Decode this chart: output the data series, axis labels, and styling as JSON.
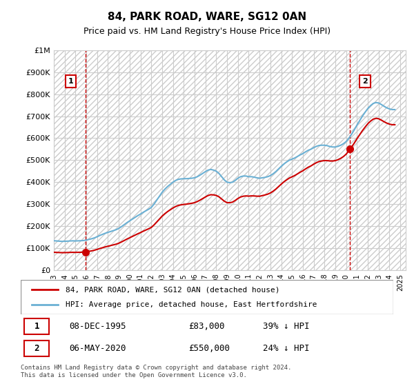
{
  "title": "84, PARK ROAD, WARE, SG12 0AN",
  "subtitle": "Price paid vs. HM Land Registry's House Price Index (HPI)",
  "xlabel": "",
  "ylabel": "",
  "ylim": [
    0,
    1000000
  ],
  "yticks": [
    0,
    100000,
    200000,
    300000,
    400000,
    500000,
    600000,
    700000,
    800000,
    900000,
    1000000
  ],
  "ytick_labels": [
    "£0",
    "£100K",
    "£200K",
    "£300K",
    "£400K",
    "£500K",
    "£600K",
    "£700K",
    "£800K",
    "£900K",
    "£1M"
  ],
  "xlim_start": 1993.0,
  "xlim_end": 2025.5,
  "xticks": [
    1993,
    1994,
    1995,
    1996,
    1997,
    1998,
    1999,
    2000,
    2001,
    2002,
    2003,
    2004,
    2005,
    2006,
    2007,
    2008,
    2009,
    2010,
    2011,
    2012,
    2013,
    2014,
    2015,
    2016,
    2017,
    2018,
    2019,
    2020,
    2021,
    2022,
    2023,
    2024,
    2025
  ],
  "hpi_color": "#6ab0d4",
  "price_color": "#cc0000",
  "vline_color": "#cc0000",
  "vline_style": "--",
  "annotation_box_color": "#cc0000",
  "background_color": "#ffffff",
  "grid_color": "#cccccc",
  "transaction1_date": 1995.93,
  "transaction1_price": 83000,
  "transaction1_label": "1",
  "transaction2_date": 2020.35,
  "transaction2_price": 550000,
  "transaction2_label": "2",
  "legend_label_price": "84, PARK ROAD, WARE, SG12 0AN (detached house)",
  "legend_label_hpi": "HPI: Average price, detached house, East Hertfordshire",
  "table_row1": [
    "1",
    "08-DEC-1995",
    "£83,000",
    "39% ↓ HPI"
  ],
  "table_row2": [
    "2",
    "06-MAY-2020",
    "£550,000",
    "24% ↓ HPI"
  ],
  "footnote": "Contains HM Land Registry data © Crown copyright and database right 2024.\nThis data is licensed under the Open Government Licence v3.0.",
  "hpi_data_x": [
    1993.0,
    1993.25,
    1993.5,
    1993.75,
    1994.0,
    1994.25,
    1994.5,
    1994.75,
    1995.0,
    1995.25,
    1995.5,
    1995.75,
    1996.0,
    1996.25,
    1996.5,
    1996.75,
    1997.0,
    1997.25,
    1997.5,
    1997.75,
    1998.0,
    1998.25,
    1998.5,
    1998.75,
    1999.0,
    1999.25,
    1999.5,
    1999.75,
    2000.0,
    2000.25,
    2000.5,
    2000.75,
    2001.0,
    2001.25,
    2001.5,
    2001.75,
    2002.0,
    2002.25,
    2002.5,
    2002.75,
    2003.0,
    2003.25,
    2003.5,
    2003.75,
    2004.0,
    2004.25,
    2004.5,
    2004.75,
    2005.0,
    2005.25,
    2005.5,
    2005.75,
    2006.0,
    2006.25,
    2006.5,
    2006.75,
    2007.0,
    2007.25,
    2007.5,
    2007.75,
    2008.0,
    2008.25,
    2008.5,
    2008.75,
    2009.0,
    2009.25,
    2009.5,
    2009.75,
    2010.0,
    2010.25,
    2010.5,
    2010.75,
    2011.0,
    2011.25,
    2011.5,
    2011.75,
    2012.0,
    2012.25,
    2012.5,
    2012.75,
    2013.0,
    2013.25,
    2013.5,
    2013.75,
    2014.0,
    2014.25,
    2014.5,
    2014.75,
    2015.0,
    2015.25,
    2015.5,
    2015.75,
    2016.0,
    2016.25,
    2016.5,
    2016.75,
    2017.0,
    2017.25,
    2017.5,
    2017.75,
    2018.0,
    2018.25,
    2018.5,
    2018.75,
    2019.0,
    2019.25,
    2019.5,
    2019.75,
    2020.0,
    2020.25,
    2020.5,
    2020.75,
    2021.0,
    2021.25,
    2021.5,
    2021.75,
    2022.0,
    2022.25,
    2022.5,
    2022.75,
    2023.0,
    2023.25,
    2023.5,
    2023.75,
    2024.0,
    2024.25,
    2024.5
  ],
  "hpi_data_y": [
    134000,
    133000,
    132000,
    131000,
    131500,
    132000,
    133000,
    133500,
    133000,
    133500,
    134000,
    135000,
    137000,
    140000,
    143000,
    147000,
    152000,
    158000,
    163000,
    168000,
    172000,
    176000,
    180000,
    184000,
    190000,
    198000,
    207000,
    216000,
    224000,
    232000,
    240000,
    248000,
    255000,
    263000,
    270000,
    277000,
    285000,
    300000,
    318000,
    336000,
    354000,
    368000,
    380000,
    390000,
    400000,
    408000,
    413000,
    415000,
    416000,
    416000,
    417000,
    418000,
    420000,
    425000,
    432000,
    440000,
    448000,
    455000,
    458000,
    455000,
    450000,
    440000,
    425000,
    410000,
    400000,
    398000,
    400000,
    408000,
    418000,
    425000,
    428000,
    428000,
    425000,
    425000,
    423000,
    420000,
    418000,
    420000,
    422000,
    425000,
    430000,
    438000,
    448000,
    460000,
    472000,
    483000,
    492000,
    500000,
    505000,
    510000,
    517000,
    524000,
    530000,
    538000,
    545000,
    550000,
    557000,
    563000,
    567000,
    568000,
    568000,
    566000,
    562000,
    560000,
    560000,
    563000,
    568000,
    575000,
    585000,
    600000,
    618000,
    638000,
    660000,
    680000,
    700000,
    718000,
    735000,
    748000,
    758000,
    762000,
    760000,
    753000,
    745000,
    738000,
    733000,
    730000,
    730000
  ],
  "price_data_x": [
    1995.93,
    2020.35
  ],
  "price_data_y": [
    83000,
    550000
  ]
}
